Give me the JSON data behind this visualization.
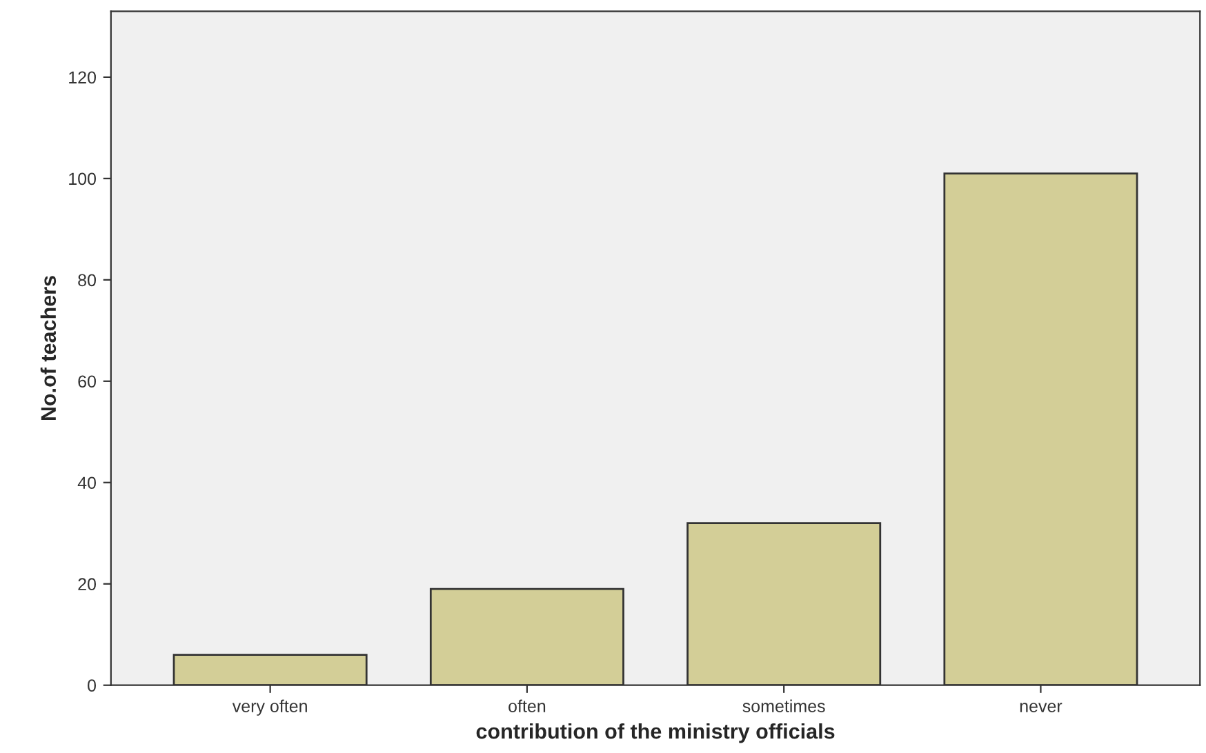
{
  "chart_data": {
    "type": "bar",
    "xlabel": "contribution of the ministry officials",
    "ylabel": "No.of teachers",
    "categories": [
      "very often",
      "often",
      "sometimes",
      "never"
    ],
    "values": [
      6,
      19,
      32,
      101
    ],
    "color": "#d3ce97",
    "ylim": [
      0,
      133
    ],
    "yticks": [
      0,
      20,
      40,
      60,
      80,
      100,
      120
    ],
    "grid": false
  }
}
